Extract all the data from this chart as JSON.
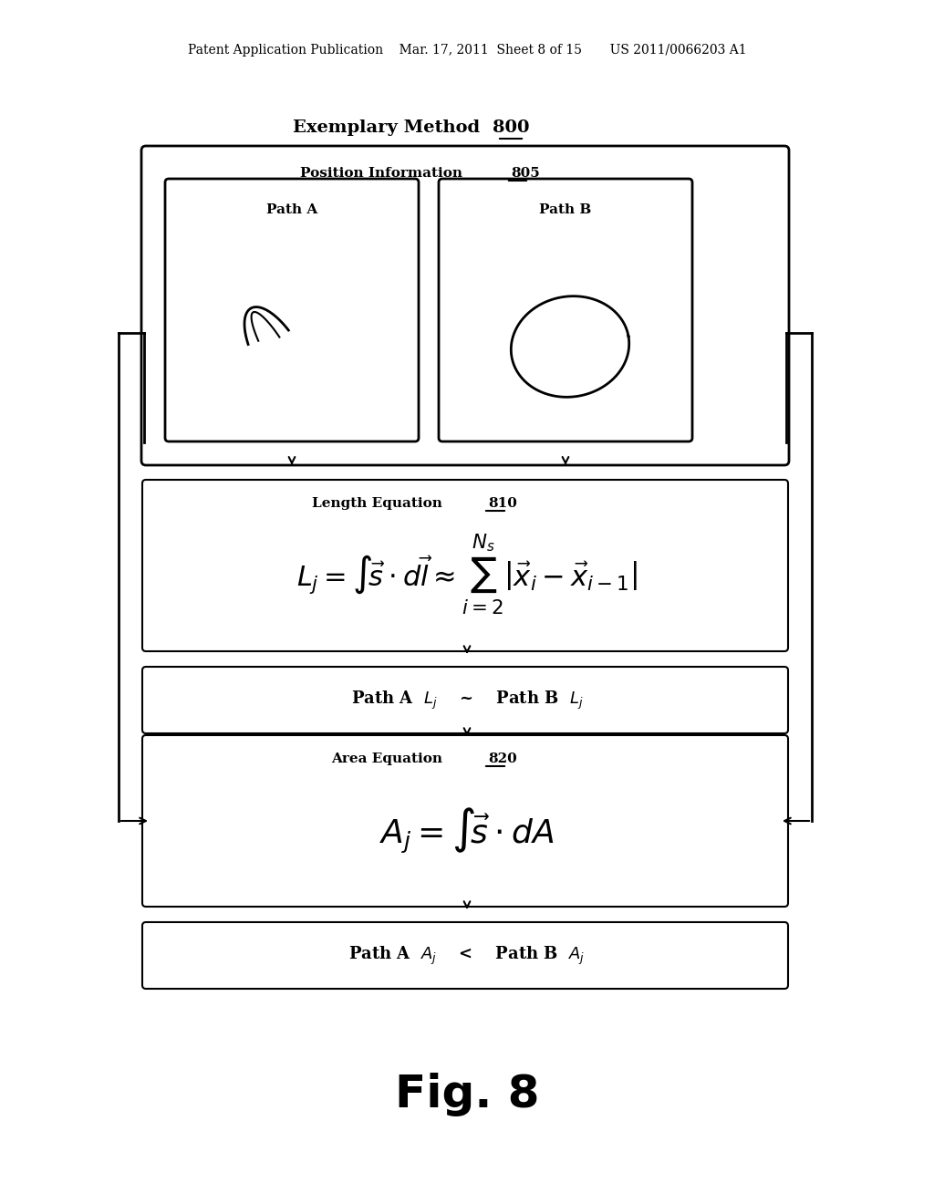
{
  "bg_color": "#ffffff",
  "header_text": "Patent Application Publication    Mar. 17, 2011  Sheet 8 of 15       US 2011/0066203 A1",
  "title": "Exemplary Method  800",
  "box1_label": "Position Information 805",
  "box1_pathA_label": "Path A",
  "box1_pathB_label": "Path B",
  "box2_label": "Length Equation 810",
  "box2_eq": "$L_j = \\int\\!\\vec{s}\\cdot d\\vec{l} \\approx \\sum_{i=2}^{N_s}|\\vec{x}_i - \\vec{x}_{i-1}|$",
  "box3_label": "Path A $L_j$  ~  Path B $L_j$",
  "box4_label": "Area Equation 820",
  "box4_eq": "$A_j = \\int\\!\\vec{s}\\cdot dA$",
  "box5_label": "Path A $A_j$  <  Path B $A_j$",
  "fig_label": "Fig. 8"
}
